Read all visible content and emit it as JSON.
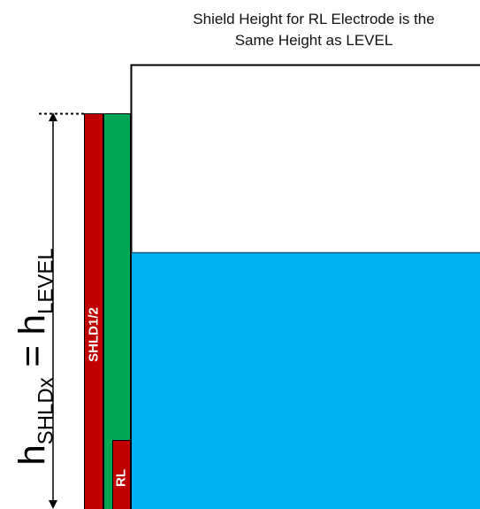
{
  "caption": {
    "line1": "Shield Height for RL Electrode is the",
    "line2": "Same Height as LEVEL"
  },
  "electrodes": {
    "shield_label": "SHLD1/2",
    "rl_label": "RL"
  },
  "height_formula": {
    "h1": "h",
    "sub1": "SHLDx",
    "equals": " = ",
    "h2": "h",
    "sub2": "LEVEL"
  },
  "colors": {
    "shield": "#c00000",
    "level_electrode": "#00a651",
    "rl_electrode": "#c00000",
    "liquid": "#00b0f0",
    "outline": "#000000"
  },
  "icons": {
    "dimension_arrow": "double-headed-arrow"
  }
}
